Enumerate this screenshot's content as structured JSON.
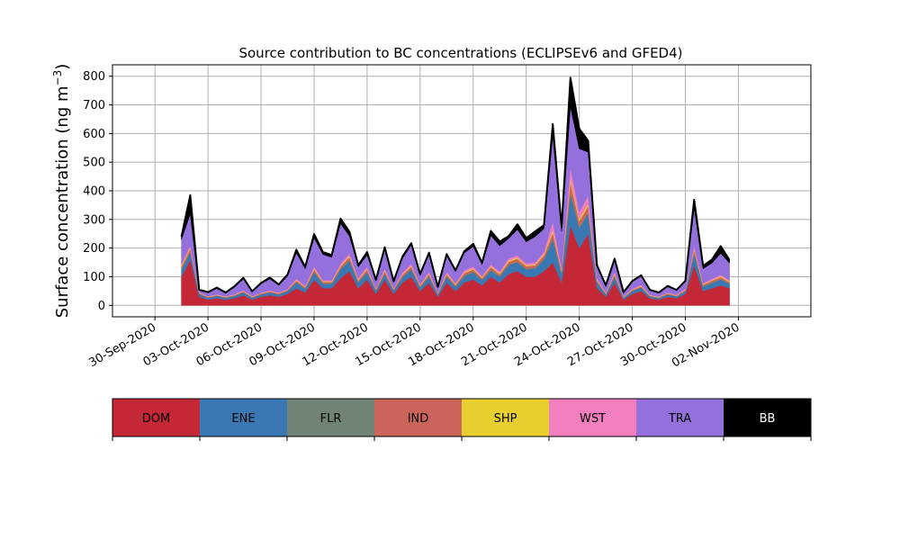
{
  "chart_data": {
    "type": "area",
    "title": "Source contribution to BC concentrations (ECLIPSEv6 and GFED4)",
    "ylabel_prefix": "Surface concentration (ng m",
    "ylabel_sup": "−3",
    "ylabel_suffix": ")",
    "xlabel": "",
    "ylim": [
      -40,
      840
    ],
    "yticks": [
      0,
      100,
      200,
      300,
      400,
      500,
      600,
      700,
      800
    ],
    "xlim_days": [
      -3.4,
      36.1
    ],
    "xticks": [
      {
        "label": "30-Sep-2020",
        "day": -1
      },
      {
        "label": "03-Oct-2020",
        "day": 2
      },
      {
        "label": "06-Oct-2020",
        "day": 5
      },
      {
        "label": "09-Oct-2020",
        "day": 8
      },
      {
        "label": "12-Oct-2020",
        "day": 11
      },
      {
        "label": "15-Oct-2020",
        "day": 14
      },
      {
        "label": "18-Oct-2020",
        "day": 17
      },
      {
        "label": "21-Oct-2020",
        "day": 20
      },
      {
        "label": "24-Oct-2020",
        "day": 23
      },
      {
        "label": "27-Oct-2020",
        "day": 26
      },
      {
        "label": "30-Oct-2020",
        "day": 29
      },
      {
        "label": "02-Nov-2020",
        "day": 32
      }
    ],
    "grid": true,
    "x_days": [
      0.5,
      1.0,
      1.5,
      2.0,
      2.5,
      3.0,
      3.5,
      4.0,
      4.5,
      5.0,
      5.5,
      6.0,
      6.5,
      7.0,
      7.5,
      8.0,
      8.5,
      9.0,
      9.5,
      10.0,
      10.5,
      11.0,
      11.5,
      12.0,
      12.5,
      13.0,
      13.5,
      14.0,
      14.5,
      15.0,
      15.5,
      16.0,
      16.5,
      17.0,
      17.5,
      18.0,
      18.5,
      19.0,
      19.5,
      20.0,
      20.5,
      21.0,
      21.5,
      22.0,
      22.5,
      23.0,
      23.5,
      24.0,
      24.5,
      25.0,
      25.5,
      26.0,
      26.5,
      27.0,
      27.5,
      28.0,
      28.5,
      29.0,
      29.5,
      30.0,
      30.5,
      31.0,
      31.5
    ],
    "series": [
      {
        "name": "DOM",
        "color": "#c42837",
        "values": [
          100,
          160,
          30,
          20,
          25,
          20,
          25,
          35,
          20,
          30,
          35,
          30,
          40,
          60,
          45,
          90,
          60,
          60,
          95,
          120,
          60,
          90,
          40,
          90,
          40,
          80,
          100,
          50,
          80,
          30,
          80,
          50,
          80,
          90,
          70,
          100,
          80,
          110,
          120,
          100,
          100,
          120,
          150,
          80,
          280,
          200,
          250,
          60,
          30,
          80,
          20,
          40,
          50,
          25,
          20,
          30,
          25,
          40,
          140,
          50,
          60,
          70,
          60
        ]
      },
      {
        "name": "ENE",
        "color": "#3a78b4",
        "values": [
          25,
          25,
          10,
          6,
          8,
          6,
          8,
          10,
          6,
          8,
          10,
          8,
          10,
          20,
          12,
          25,
          15,
          15,
          30,
          35,
          20,
          25,
          12,
          20,
          12,
          18,
          25,
          12,
          20,
          8,
          20,
          15,
          22,
          25,
          18,
          22,
          20,
          30,
          30,
          25,
          28,
          40,
          80,
          30,
          110,
          70,
          70,
          20,
          8,
          20,
          6,
          10,
          12,
          6,
          5,
          8,
          6,
          10,
          40,
          15,
          18,
          20,
          15
        ]
      },
      {
        "name": "FLR",
        "color": "#6f8474",
        "values": [
          3,
          3,
          1,
          1,
          1,
          1,
          1,
          1,
          1,
          1,
          1,
          1,
          1,
          2,
          2,
          3,
          2,
          2,
          3,
          4,
          2,
          3,
          1,
          2,
          1,
          2,
          3,
          2,
          2,
          1,
          2,
          2,
          3,
          3,
          2,
          3,
          2,
          3,
          3,
          3,
          3,
          3,
          5,
          2,
          8,
          5,
          5,
          2,
          1,
          2,
          1,
          1,
          1,
          1,
          1,
          1,
          1,
          1,
          3,
          2,
          2,
          2,
          2
        ]
      },
      {
        "name": "IND",
        "color": "#cc6559",
        "values": [
          8,
          10,
          3,
          2,
          2,
          2,
          2,
          3,
          2,
          3,
          3,
          3,
          3,
          5,
          4,
          8,
          5,
          5,
          8,
          10,
          6,
          8,
          4,
          8,
          4,
          7,
          8,
          5,
          7,
          3,
          7,
          5,
          8,
          8,
          6,
          9,
          7,
          9,
          10,
          9,
          9,
          12,
          20,
          8,
          35,
          20,
          22,
          6,
          3,
          7,
          2,
          3,
          4,
          2,
          2,
          3,
          2,
          3,
          12,
          5,
          6,
          7,
          5
        ]
      },
      {
        "name": "SHP",
        "color": "#e6cf2f",
        "values": [
          3,
          4,
          1,
          1,
          1,
          1,
          1,
          1,
          1,
          1,
          1,
          1,
          1,
          2,
          2,
          3,
          2,
          2,
          3,
          4,
          2,
          3,
          1,
          3,
          1,
          2,
          3,
          2,
          3,
          1,
          3,
          2,
          3,
          3,
          2,
          3,
          3,
          4,
          4,
          3,
          3,
          4,
          8,
          3,
          12,
          7,
          8,
          2,
          1,
          3,
          1,
          1,
          2,
          1,
          1,
          1,
          1,
          1,
          4,
          2,
          2,
          3,
          2
        ]
      },
      {
        "name": "WST",
        "color": "#f17fbe",
        "values": [
          6,
          8,
          2,
          2,
          2,
          2,
          2,
          3,
          2,
          2,
          3,
          2,
          3,
          5,
          3,
          7,
          4,
          4,
          7,
          9,
          5,
          7,
          3,
          6,
          3,
          6,
          7,
          4,
          6,
          2,
          6,
          4,
          7,
          7,
          5,
          7,
          6,
          8,
          8,
          7,
          7,
          9,
          30,
          6,
          40,
          25,
          30,
          5,
          3,
          6,
          2,
          3,
          3,
          2,
          2,
          2,
          2,
          3,
          10,
          4,
          5,
          5,
          4
        ]
      },
      {
        "name": "TRA",
        "color": "#9370db",
        "values": [
          85,
          110,
          5,
          12,
          20,
          10,
          25,
          40,
          15,
          30,
          40,
          25,
          45,
          90,
          60,
          100,
          90,
          80,
          140,
          60,
          40,
          40,
          25,
          65,
          20,
          50,
          65,
          30,
          60,
          18,
          55,
          40,
          60,
          70,
          40,
          100,
          90,
          70,
          90,
          75,
          90,
          80,
          300,
          130,
          210,
          220,
          150,
          40,
          20,
          40,
          12,
          25,
          30,
          15,
          12,
          20,
          15,
          25,
          130,
          50,
          55,
          75,
          60
        ]
      },
      {
        "name": "BB",
        "color": "#000000",
        "values": [
          10,
          65,
          3,
          2,
          3,
          3,
          3,
          3,
          2,
          3,
          4,
          3,
          5,
          10,
          6,
          13,
          8,
          8,
          17,
          15,
          5,
          10,
          3,
          9,
          3,
          6,
          6,
          4,
          6,
          2,
          6,
          4,
          6,
          9,
          6,
          16,
          15,
          8,
          18,
          13,
          18,
          12,
          40,
          14,
          100,
          70,
          40,
          5,
          4,
          5,
          2,
          2,
          3,
          2,
          2,
          3,
          2,
          3,
          30,
          10,
          12,
          25,
          10
        ]
      }
    ],
    "legend": {
      "placement": "below",
      "entries": [
        {
          "label": "DOM",
          "color": "#c42837",
          "text_color": "#000000"
        },
        {
          "label": "ENE",
          "color": "#3a78b4",
          "text_color": "#000000"
        },
        {
          "label": "FLR",
          "color": "#6f8474",
          "text_color": "#000000"
        },
        {
          "label": "IND",
          "color": "#cc6559",
          "text_color": "#000000"
        },
        {
          "label": "SHP",
          "color": "#e6cf2f",
          "text_color": "#000000"
        },
        {
          "label": "WST",
          "color": "#f17fbe",
          "text_color": "#000000"
        },
        {
          "label": "TRA",
          "color": "#9370db",
          "text_color": "#000000"
        },
        {
          "label": "BB",
          "color": "#000000",
          "text_color": "#ffffff"
        }
      ]
    }
  }
}
